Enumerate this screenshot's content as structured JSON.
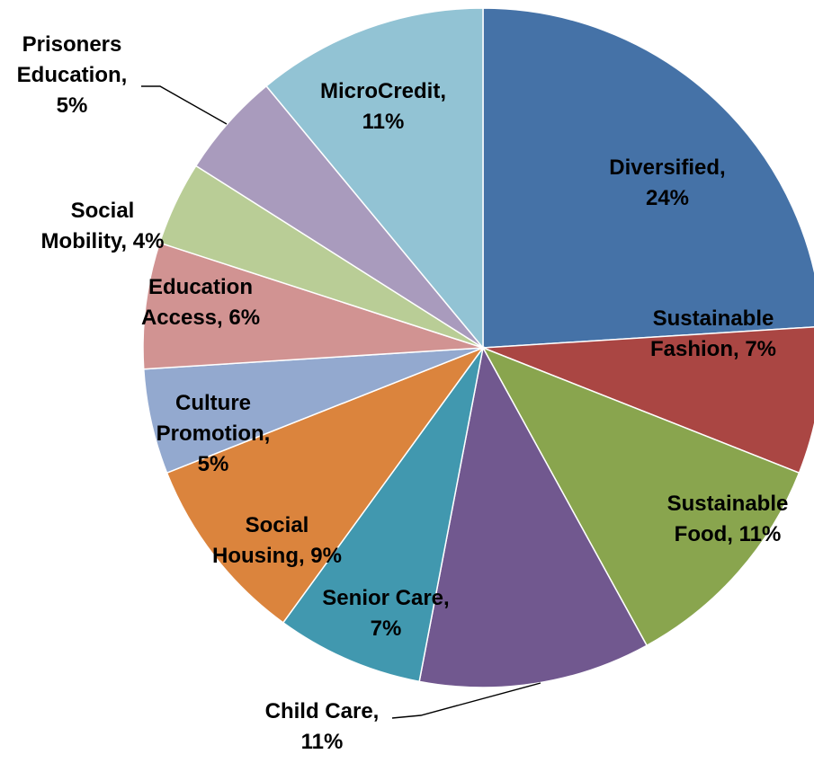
{
  "chart_data": {
    "type": "pie",
    "title": "",
    "start_angle_deg": 0,
    "direction": "clockwise",
    "slices": [
      {
        "name": "Diversified",
        "value": 24,
        "label_lines": [
          "Diversified,",
          "24%"
        ],
        "color": "#4572A7"
      },
      {
        "name": "Sustainable Fashion",
        "value": 7,
        "label_lines": [
          "Sustainable",
          "Fashion, 7%"
        ],
        "color": "#AA4643"
      },
      {
        "name": "Sustainable Food",
        "value": 11,
        "label_lines": [
          "Sustainable",
          "Food, 11%"
        ],
        "color": "#89A54E"
      },
      {
        "name": "Child Care",
        "value": 11,
        "label_lines": [
          "Child Care,",
          "11%"
        ],
        "color": "#71588F"
      },
      {
        "name": "Senior Care",
        "value": 7,
        "label_lines": [
          "Senior Care,",
          "7%"
        ],
        "color": "#4198AF"
      },
      {
        "name": "Social Housing",
        "value": 9,
        "label_lines": [
          "Social",
          "Housing, 9%"
        ],
        "color": "#DB843D"
      },
      {
        "name": "Culture Promotion",
        "value": 5,
        "label_lines": [
          "Culture",
          "Promotion,",
          "5%"
        ],
        "color": "#93A9CF"
      },
      {
        "name": "Education Access",
        "value": 6,
        "label_lines": [
          "Education",
          "Access, 6%"
        ],
        "color": "#D19392"
      },
      {
        "name": "Social Mobility",
        "value": 4,
        "label_lines": [
          "Social",
          "Mobility, 4%"
        ],
        "color": "#B9CD96"
      },
      {
        "name": "Prisoners Education",
        "value": 5,
        "label_lines": [
          "Prisoners",
          "Education,",
          "5%"
        ],
        "color": "#A99BBD"
      },
      {
        "name": "MicroCredit",
        "value": 11,
        "label_lines": [
          "MicroCredit,",
          "11%"
        ],
        "color": "#92C3D4"
      }
    ]
  }
}
